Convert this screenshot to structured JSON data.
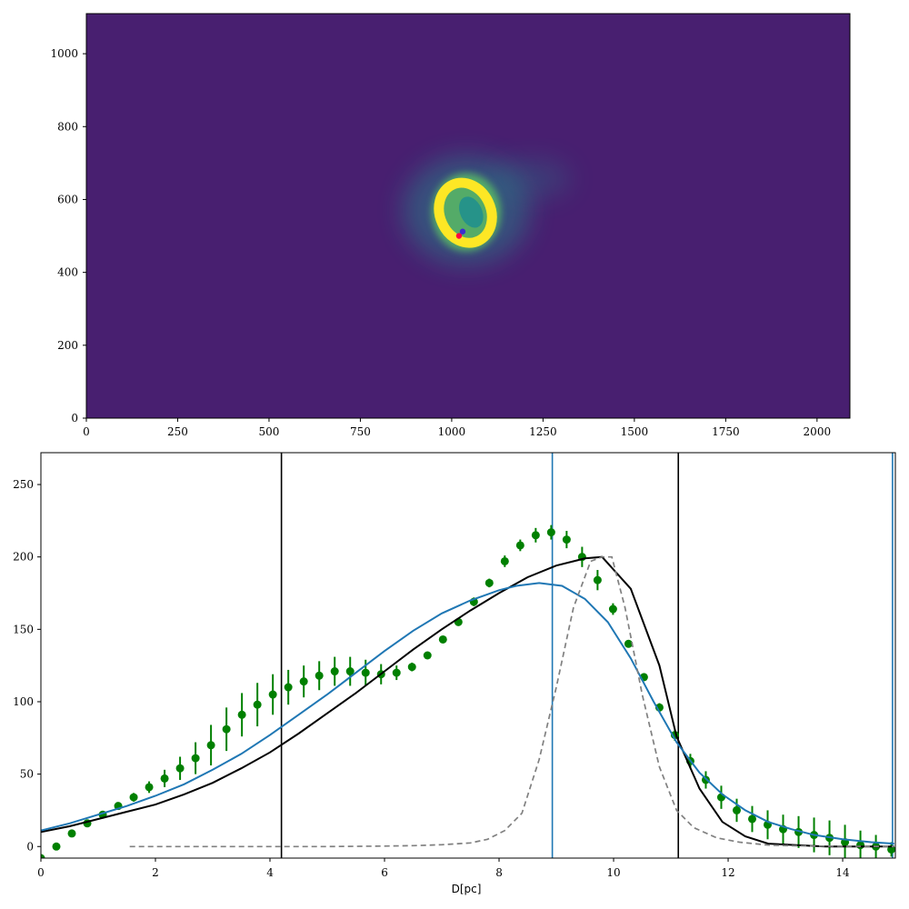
{
  "image_panel": {
    "x_ticks": [
      "0",
      "250",
      "500",
      "750",
      "1000",
      "1250",
      "1500",
      "1750",
      "2000"
    ],
    "y_ticks": [
      "0",
      "200",
      "400",
      "600",
      "800",
      "1000"
    ],
    "colors": {
      "background": "#481f70",
      "bright": "#fde725",
      "teal": "#21908d",
      "green": "#5ec962",
      "marker": "#ff0040",
      "marker2": "#3b2fd0"
    }
  },
  "chart_data": [
    {
      "type": "heatmap",
      "xlim": [
        0,
        2090
      ],
      "ylim": [
        0,
        1110
      ],
      "source_blob_center": [
        1040,
        570
      ],
      "markers": [
        {
          "x": 1020,
          "y": 500,
          "color": "#ff0040"
        },
        {
          "x": 1030,
          "y": 512,
          "color": "#3b2fd0"
        }
      ]
    },
    {
      "type": "line",
      "xlabel": "D[pc]",
      "xlim": [
        0,
        14.92
      ],
      "ylim": [
        -8,
        272
      ],
      "x_ticks": [
        "0",
        "2",
        "4",
        "6",
        "8",
        "10",
        "12",
        "14"
      ],
      "y_ticks": [
        "0",
        "50",
        "100",
        "150",
        "200",
        "250"
      ],
      "series": [
        {
          "style": "errorbar",
          "color": "#008000",
          "x": [
            0,
            0.27,
            0.54,
            0.81,
            1.08,
            1.35,
            1.62,
            1.89,
            2.16,
            2.43,
            2.7,
            2.97,
            3.24,
            3.51,
            3.78,
            4.05,
            4.32,
            4.59,
            4.86,
            5.13,
            5.4,
            5.67,
            5.94,
            6.21,
            6.48,
            6.75,
            7.02,
            7.29,
            7.56,
            7.83,
            8.1,
            8.37,
            8.64,
            8.91,
            9.18,
            9.45,
            9.72,
            9.99,
            10.26,
            10.53,
            10.8,
            11.07,
            11.34,
            11.61,
            11.88,
            12.15,
            12.42,
            12.69,
            12.96,
            13.23,
            13.5,
            13.77,
            14.04,
            14.31,
            14.58,
            14.85
          ],
          "y": [
            -8,
            0,
            9,
            16,
            22,
            28,
            34,
            41,
            47,
            54,
            61,
            70,
            81,
            91,
            98,
            105,
            110,
            114,
            118,
            121,
            121,
            120,
            119,
            120,
            124,
            132,
            143,
            155,
            169,
            182,
            197,
            208,
            215,
            217,
            212,
            200,
            184,
            164,
            140,
            117,
            96,
            77,
            59,
            46,
            34,
            25,
            19,
            15,
            12,
            10,
            8,
            6,
            3,
            1,
            0,
            -2
          ],
          "err": [
            0,
            0,
            0,
            0,
            0,
            0,
            3,
            4,
            6,
            8,
            11,
            14,
            15,
            15,
            15,
            14,
            12,
            11,
            10,
            10,
            10,
            9,
            7,
            5,
            3,
            2,
            2,
            2,
            3,
            3,
            4,
            4,
            5,
            5,
            6,
            7,
            7,
            4,
            2,
            2,
            3,
            4,
            5,
            6,
            8,
            8,
            9,
            10,
            10,
            11,
            12,
            12,
            12,
            10,
            8,
            5
          ]
        },
        {
          "style": "line",
          "color": "#000000",
          "x": [
            0,
            0.5,
            1,
            1.5,
            2,
            2.5,
            3,
            3.5,
            4,
            4.5,
            5,
            5.5,
            6,
            6.5,
            7,
            7.5,
            8,
            8.5,
            9,
            9.5,
            9.8,
            10.3,
            10.8,
            11.1,
            11.5,
            11.9,
            12.3,
            12.7,
            13.2,
            13.7,
            14.2,
            14.9
          ],
          "y": [
            10,
            14,
            19,
            24,
            29,
            36,
            44,
            54,
            65,
            78,
            92,
            106,
            121,
            136,
            150,
            163,
            175,
            186,
            194,
            199,
            200,
            178,
            125,
            76,
            40,
            17,
            7,
            2,
            1,
            0,
            0,
            0
          ]
        },
        {
          "style": "line",
          "color": "#1f77b4",
          "x": [
            0,
            0.5,
            1,
            1.5,
            2,
            2.5,
            3,
            3.5,
            4,
            4.5,
            5,
            5.5,
            6,
            6.5,
            7,
            7.5,
            8,
            8.3,
            8.7,
            9.1,
            9.5,
            9.9,
            10.3,
            10.7,
            11.1,
            11.5,
            11.9,
            12.3,
            12.7,
            13.1,
            13.5,
            14.0,
            14.5,
            14.9
          ],
          "y": [
            11,
            16,
            22,
            28,
            35,
            43,
            53,
            64,
            77,
            91,
            105,
            120,
            135,
            149,
            161,
            170,
            177,
            180,
            182,
            180,
            171,
            155,
            130,
            100,
            72,
            51,
            36,
            25,
            17,
            12,
            8,
            5,
            3,
            2
          ]
        },
        {
          "style": "dashed",
          "color": "#808080",
          "x": [
            1.55,
            2,
            3,
            4,
            5,
            6,
            6.5,
            7,
            7.5,
            7.8,
            8.1,
            8.4,
            8.7,
            9,
            9.3,
            9.6,
            9.8,
            9.97,
            10.2,
            10.5,
            10.8,
            11.1,
            11.4,
            11.8,
            12.2,
            12.7,
            13.2,
            13.8,
            14.4,
            14.9
          ],
          "y": [
            0,
            0,
            0,
            0,
            0,
            0.3,
            0.6,
            1.2,
            2.5,
            5,
            11,
            23,
            60,
            110,
            165,
            197,
            200,
            200,
            165,
            105,
            55,
            25,
            13,
            6,
            3,
            1,
            0.5,
            0.2,
            0.1,
            0
          ]
        }
      ],
      "vlines": [
        {
          "x": 4.2,
          "color": "#000000"
        },
        {
          "x": 8.93,
          "color": "#1f77b4"
        },
        {
          "x": 11.13,
          "color": "#000000"
        },
        {
          "x": 14.87,
          "color": "#1f77b4"
        }
      ]
    }
  ]
}
